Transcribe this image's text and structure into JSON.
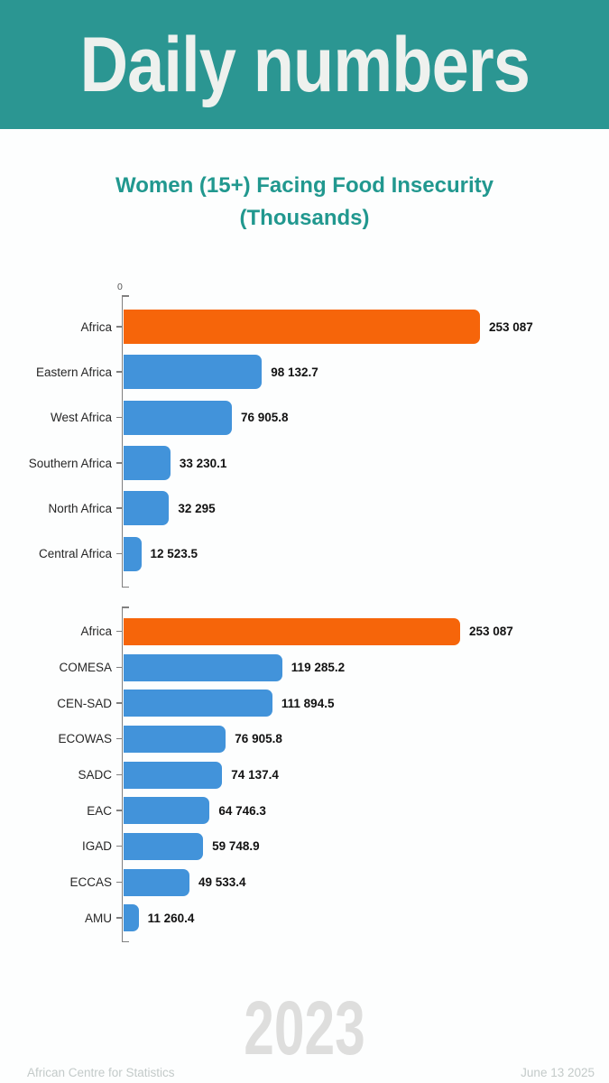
{
  "header": {
    "title": "Daily numbers"
  },
  "title": "Women (15+) Facing Food Insecurity (Thousands)",
  "watermark_year": "2023",
  "footer": {
    "left": "African Centre for Statistics",
    "right": "June 13 2025"
  },
  "colors": {
    "banner_bg": "#2b9692",
    "banner_text": "#eef1ee",
    "title_text": "#21988f",
    "bar_default": "#4293da",
    "bar_highlight": "#f6650a",
    "axis": "#808080",
    "category_text": "#262626",
    "value_text": "#121212",
    "watermark_text": "#dededd",
    "footer_text": "#c3cac9"
  },
  "chart_data": [
    {
      "type": "bar",
      "orientation": "horizontal",
      "axis_origin_label": "0",
      "xlim": [
        0,
        253087
      ],
      "categories": [
        "Africa",
        "Eastern Africa",
        "West Africa",
        "Southern Africa",
        "North Africa",
        "Central Africa"
      ],
      "values": [
        253087,
        98132.7,
        76905.8,
        33230.1,
        32295,
        12523.5
      ],
      "value_labels": [
        "253 087",
        "98 132.7",
        "76 905.8",
        "33 230.1",
        "32 295",
        "12 523.5"
      ],
      "highlight_index": 0
    },
    {
      "type": "bar",
      "orientation": "horizontal",
      "xlim": [
        0,
        253087
      ],
      "categories": [
        "Africa",
        "COMESA",
        "CEN-SAD",
        "ECOWAS",
        "SADC",
        "EAC",
        "IGAD",
        "ECCAS",
        "AMU"
      ],
      "values": [
        253087,
        119285.2,
        111894.5,
        76905.8,
        74137.4,
        64746.3,
        59748.9,
        49533.4,
        11260.4
      ],
      "value_labels": [
        "253 087",
        "119 285.2",
        "111 894.5",
        "76 905.8",
        "74 137.4",
        "64 746.3",
        "59 748.9",
        "49 533.4",
        "11 260.4"
      ],
      "highlight_index": 0
    }
  ]
}
